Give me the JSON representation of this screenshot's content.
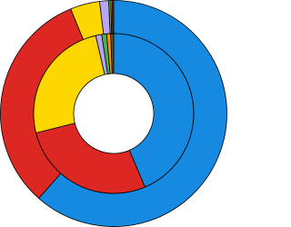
{
  "chart_data": {
    "type": "donut",
    "categories": [
      null,
      null,
      null,
      null,
      null,
      null,
      null
    ],
    "colors": [
      "#1689e0",
      "#dc2722",
      "#ffd700",
      "#b8a6f5",
      "#4caf50",
      "#ff9800",
      "#6b4e16"
    ],
    "series": [
      {
        "values": [
          61.5,
          32.3,
          4.2,
          1.3,
          0.3,
          0.2,
          0.2
        ]
      },
      {
        "values": [
          43.6,
          27.5,
          25.3,
          1.2,
          1.0,
          0.8,
          0.6
        ]
      }
    ]
  }
}
